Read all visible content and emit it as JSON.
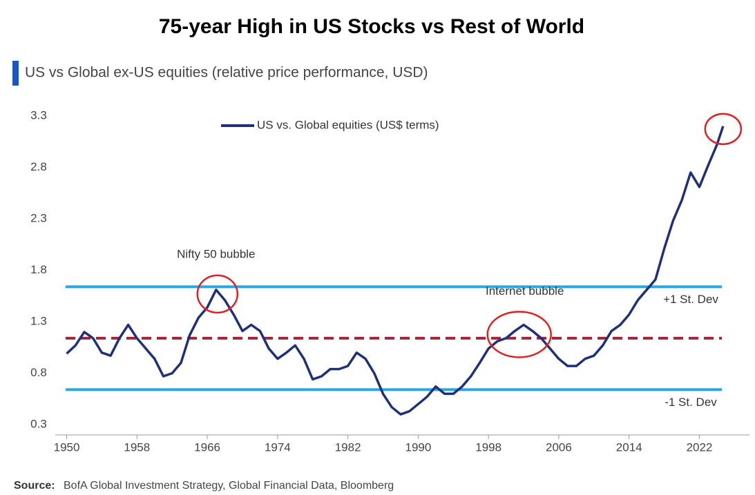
{
  "chart_data": {
    "type": "line",
    "title": "75-year High in US Stocks vs Rest of World",
    "subtitle": "US vs Global ex-US equities (relative price performance, USD)",
    "source_label": "Source:",
    "source": "BofA Global Investment Strategy, Global Financial Data, Bloomberg",
    "x": [
      1950,
      1951,
      1952,
      1953,
      1954,
      1955,
      1956,
      1957,
      1958,
      1959,
      1960,
      1961,
      1962,
      1963,
      1964,
      1965,
      1966,
      1967,
      1968,
      1969,
      1970,
      1971,
      1972,
      1973,
      1974,
      1975,
      1976,
      1977,
      1978,
      1979,
      1980,
      1981,
      1982,
      1983,
      1984,
      1985,
      1986,
      1987,
      1988,
      1989,
      1990,
      1991,
      1992,
      1993,
      1994,
      1995,
      1996,
      1997,
      1998,
      1999,
      2000,
      2001,
      2002,
      2003,
      2004,
      2005,
      2006,
      2007,
      2008,
      2009,
      2010,
      2011,
      2012,
      2013,
      2014,
      2015,
      2016,
      2017,
      2018,
      2019,
      2020,
      2021,
      2022,
      2023,
      2024,
      2024.7
    ],
    "series": [
      {
        "name": "US vs. Global equities (US$ terms)",
        "color": "#1f2f7a",
        "values": [
          0.99,
          1.07,
          1.2,
          1.14,
          1.0,
          0.97,
          1.14,
          1.27,
          1.14,
          1.04,
          0.94,
          0.77,
          0.8,
          0.9,
          1.17,
          1.34,
          1.44,
          1.61,
          1.51,
          1.37,
          1.21,
          1.27,
          1.21,
          1.04,
          0.94,
          1.0,
          1.07,
          0.94,
          0.74,
          0.77,
          0.84,
          0.84,
          0.87,
          1.0,
          0.94,
          0.8,
          0.6,
          0.47,
          0.4,
          0.43,
          0.5,
          0.57,
          0.67,
          0.6,
          0.6,
          0.67,
          0.77,
          0.9,
          1.04,
          1.11,
          1.14,
          1.21,
          1.27,
          1.21,
          1.14,
          1.04,
          0.94,
          0.87,
          0.87,
          0.94,
          0.97,
          1.07,
          1.21,
          1.27,
          1.37,
          1.51,
          1.61,
          1.71,
          2.01,
          2.28,
          2.48,
          2.75,
          2.61,
          2.82,
          3.02,
          3.2
        ]
      }
    ],
    "reference_lines": [
      {
        "value": 1.64,
        "label": "+1 St. Dev",
        "color": "#2aa6de",
        "style": "solid"
      },
      {
        "value": 1.14,
        "color": "#a3243b",
        "style": "dashed"
      },
      {
        "value": 0.64,
        "label": "-1 St. Dev",
        "color": "#2aa6de",
        "style": "solid"
      }
    ],
    "annotations": [
      {
        "text": "Nifty 50 bubble",
        "x": 1967,
        "y": 1.61
      },
      {
        "text": "Internet bubble",
        "x": 2001.5,
        "y": 1.21
      },
      {
        "x": 2024.7,
        "y": 3.2
      }
    ],
    "xlim": [
      1948.7,
      2027.7
    ],
    "ylim": [
      0.2,
      3.4
    ],
    "xticks": [
      1950,
      1958,
      1966,
      1974,
      1982,
      1990,
      1998,
      2006,
      2014,
      2022
    ],
    "yticks": [
      0.3,
      0.8,
      1.3,
      1.8,
      2.3,
      2.8,
      3.3
    ],
    "grid": false,
    "legend": "top"
  }
}
